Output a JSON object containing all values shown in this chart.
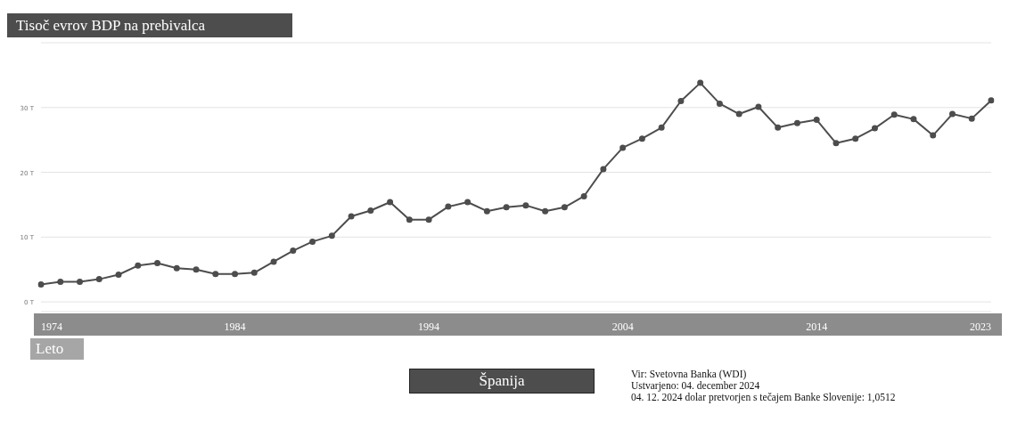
{
  "chart_data": {
    "type": "line",
    "title": "Tisoč evrov BDP na prebivalca",
    "xlabel": "Leto",
    "x": [
      1974,
      1975,
      1976,
      1977,
      1978,
      1979,
      1980,
      1981,
      1982,
      1983,
      1984,
      1985,
      1986,
      1987,
      1988,
      1989,
      1990,
      1991,
      1992,
      1993,
      1994,
      1995,
      1996,
      1997,
      1998,
      1999,
      2000,
      2001,
      2002,
      2003,
      2004,
      2005,
      2006,
      2007,
      2008,
      2009,
      2010,
      2011,
      2012,
      2013,
      2014,
      2015,
      2016,
      2017,
      2018,
      2019,
      2020,
      2021,
      2022,
      2023
    ],
    "series": [
      {
        "name": "Španija",
        "color": "#4d4d4d",
        "values": [
          2.7,
          3.1,
          3.1,
          3.5,
          4.2,
          5.6,
          6.0,
          5.2,
          5.0,
          4.3,
          4.3,
          4.5,
          6.2,
          7.9,
          9.3,
          10.2,
          13.2,
          14.1,
          15.4,
          12.7,
          12.7,
          14.7,
          15.4,
          14.0,
          14.6,
          14.9,
          14.0,
          14.6,
          16.3,
          20.5,
          23.8,
          25.2,
          26.9,
          31.0,
          33.8,
          30.6,
          29.0,
          30.1,
          26.9,
          27.6,
          28.1,
          24.5,
          25.2,
          26.8,
          28.9,
          28.2,
          25.7,
          29.0,
          28.3,
          31.1
        ]
      }
    ],
    "xlim": [
      1974,
      2023
    ],
    "xticks": [
      1974,
      1984,
      1994,
      2004,
      2014,
      2023
    ],
    "ylim": [
      -1.5,
      40
    ],
    "yticks": [
      {
        "value": 0,
        "label": "0 T"
      },
      {
        "value": 10,
        "label": "10 T"
      },
      {
        "value": 20,
        "label": "20 T"
      },
      {
        "value": 30,
        "label": "30 T"
      },
      {
        "value": 40,
        "label": null
      }
    ],
    "grid": "y",
    "legend": "bottom",
    "marker": "circle",
    "line_style": "solid",
    "annotations": [
      "Vir: Svetovna Banka (WDI)",
      "Ustvarjeno: 04. december 2024",
      "04. 12. 2024 dolar pretvorjen s tečajem Banke Slovenije: 1,0512"
    ]
  }
}
